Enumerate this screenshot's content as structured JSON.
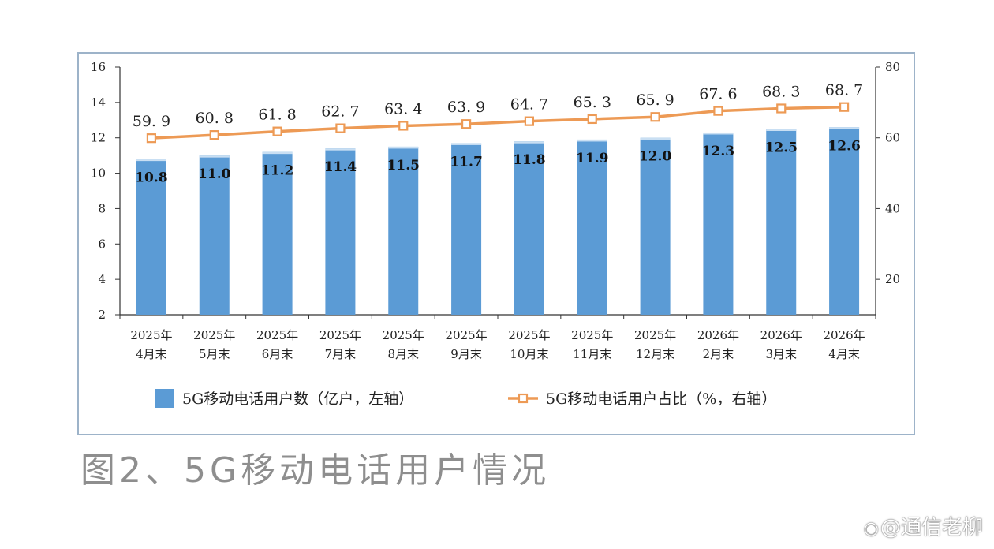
{
  "chart_data": {
    "type": "bar+line",
    "categories": [
      [
        "2025年",
        "4月末"
      ],
      [
        "2025年",
        "5月末"
      ],
      [
        "2025年",
        "6月末"
      ],
      [
        "2025年",
        "7月末"
      ],
      [
        "2025年",
        "8月末"
      ],
      [
        "2025年",
        "9月末"
      ],
      [
        "2025年",
        "10月末"
      ],
      [
        "2025年",
        "11月末"
      ],
      [
        "2025年",
        "12月末"
      ],
      [
        "2026年",
        "2月末"
      ],
      [
        "2026年",
        "3月末"
      ],
      [
        "2026年",
        "4月末"
      ]
    ],
    "series": [
      {
        "name": "5G移动电话用户数（亿户，左轴）",
        "type": "bar",
        "axis": "left",
        "color": "#5b9bd5",
        "values": [
          10.8,
          11.0,
          11.2,
          11.4,
          11.5,
          11.7,
          11.8,
          11.9,
          12.0,
          12.3,
          12.5,
          12.6
        ],
        "labels": [
          "10.8",
          "11.0",
          "11.2",
          "11.4",
          "11.5",
          "11.7",
          "11.8",
          "11.9",
          "12.0",
          "12.3",
          "12.5",
          "12.6"
        ]
      },
      {
        "name": "5G移动电话用户占比（%，右轴）",
        "type": "line",
        "axis": "right",
        "color": "#ed9a55",
        "values": [
          59.9,
          60.8,
          61.8,
          62.7,
          63.4,
          63.9,
          64.7,
          65.3,
          65.9,
          67.6,
          68.3,
          68.7
        ],
        "labels": [
          "59. 9",
          "60. 8",
          "61. 8",
          "62. 7",
          "63. 4",
          "63. 9",
          "64. 7",
          "65. 3",
          "65. 9",
          "67. 6",
          "68. 3",
          "68. 7"
        ]
      }
    ],
    "y_left": {
      "range": [
        2,
        16
      ],
      "ticks": [
        "2",
        "4",
        "6",
        "8",
        "10",
        "12",
        "14",
        "16"
      ]
    },
    "y_right": {
      "range": [
        10,
        80
      ],
      "ticks": [
        "20",
        "40",
        "60",
        "80"
      ]
    },
    "grid": false,
    "legend": "bottom"
  },
  "caption": "图2、5G移动电话用户情况",
  "watermark": {
    "icon": "weibo-icon",
    "text": "@通信老柳"
  }
}
